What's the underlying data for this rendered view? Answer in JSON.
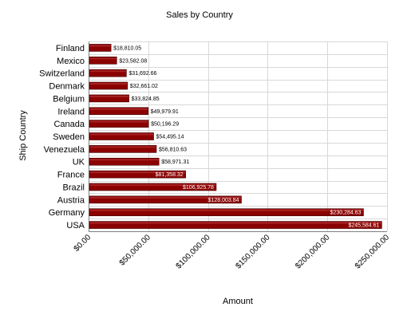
{
  "chart_data": {
    "type": "bar",
    "orientation": "horizontal",
    "title": "Sales by Country",
    "xlabel": "Amount",
    "ylabel": "Ship Country",
    "xlim": [
      0,
      250000
    ],
    "xticks": [
      "$0.00",
      "$50,000.00",
      "$100,000.00",
      "$150,000.00",
      "$200,000.00",
      "$250,000.00"
    ],
    "grid": true,
    "legend": "none",
    "bar_color": "#8b0000",
    "categories": [
      "Finland",
      "Mexico",
      "Switzerland",
      "Denmark",
      "Belgium",
      "Ireland",
      "Canada",
      "Sweden",
      "Venezuela",
      "UK",
      "France",
      "Brazil",
      "Austria",
      "Germany",
      "USA"
    ],
    "values": [
      18810.05,
      23582.08,
      31692.66,
      32661.02,
      33824.85,
      49979.91,
      50196.29,
      54495.14,
      56810.63,
      58971.31,
      81358.32,
      106925.78,
      128003.84,
      230284.63,
      245584.61
    ],
    "value_labels": [
      "$18,810.05",
      "$23,582.08",
      "$31,692.66",
      "$32,661.02",
      "$33,824.85",
      "$49,979.91",
      "$50,196.29",
      "$54,495.14",
      "$56,810.63",
      "$58,971.31",
      "$81,358.32",
      "$106,925.78",
      "$128,003.84",
      "$230,284.63",
      "$245,584.61"
    ]
  }
}
